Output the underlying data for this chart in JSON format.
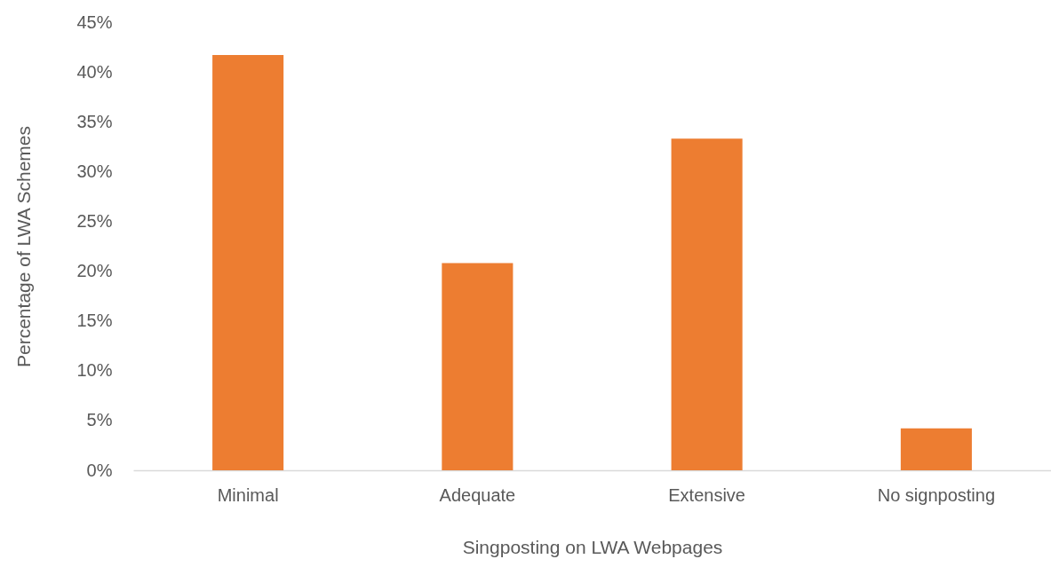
{
  "chart_data": {
    "type": "bar",
    "xlabel": "Singposting on LWA Webpages",
    "ylabel": "Percentage of LWA Schemes",
    "categories": [
      "Minimal",
      "Adequate",
      "Extensive",
      "No signposting"
    ],
    "values": [
      41.7,
      20.8,
      33.3,
      4.2
    ],
    "color": "#ed7d31",
    "ylim": [
      0,
      45
    ],
    "yticks": [
      {
        "value": 0,
        "label": "0%"
      },
      {
        "value": 5,
        "label": "5%"
      },
      {
        "value": 10,
        "label": "10%"
      },
      {
        "value": 15,
        "label": "15%"
      },
      {
        "value": 20,
        "label": "20%"
      },
      {
        "value": 25,
        "label": "25%"
      },
      {
        "value": 30,
        "label": "30%"
      },
      {
        "value": 35,
        "label": "35%"
      },
      {
        "value": 40,
        "label": "40%"
      },
      {
        "value": 45,
        "label": "45%"
      }
    ],
    "grid": false
  }
}
